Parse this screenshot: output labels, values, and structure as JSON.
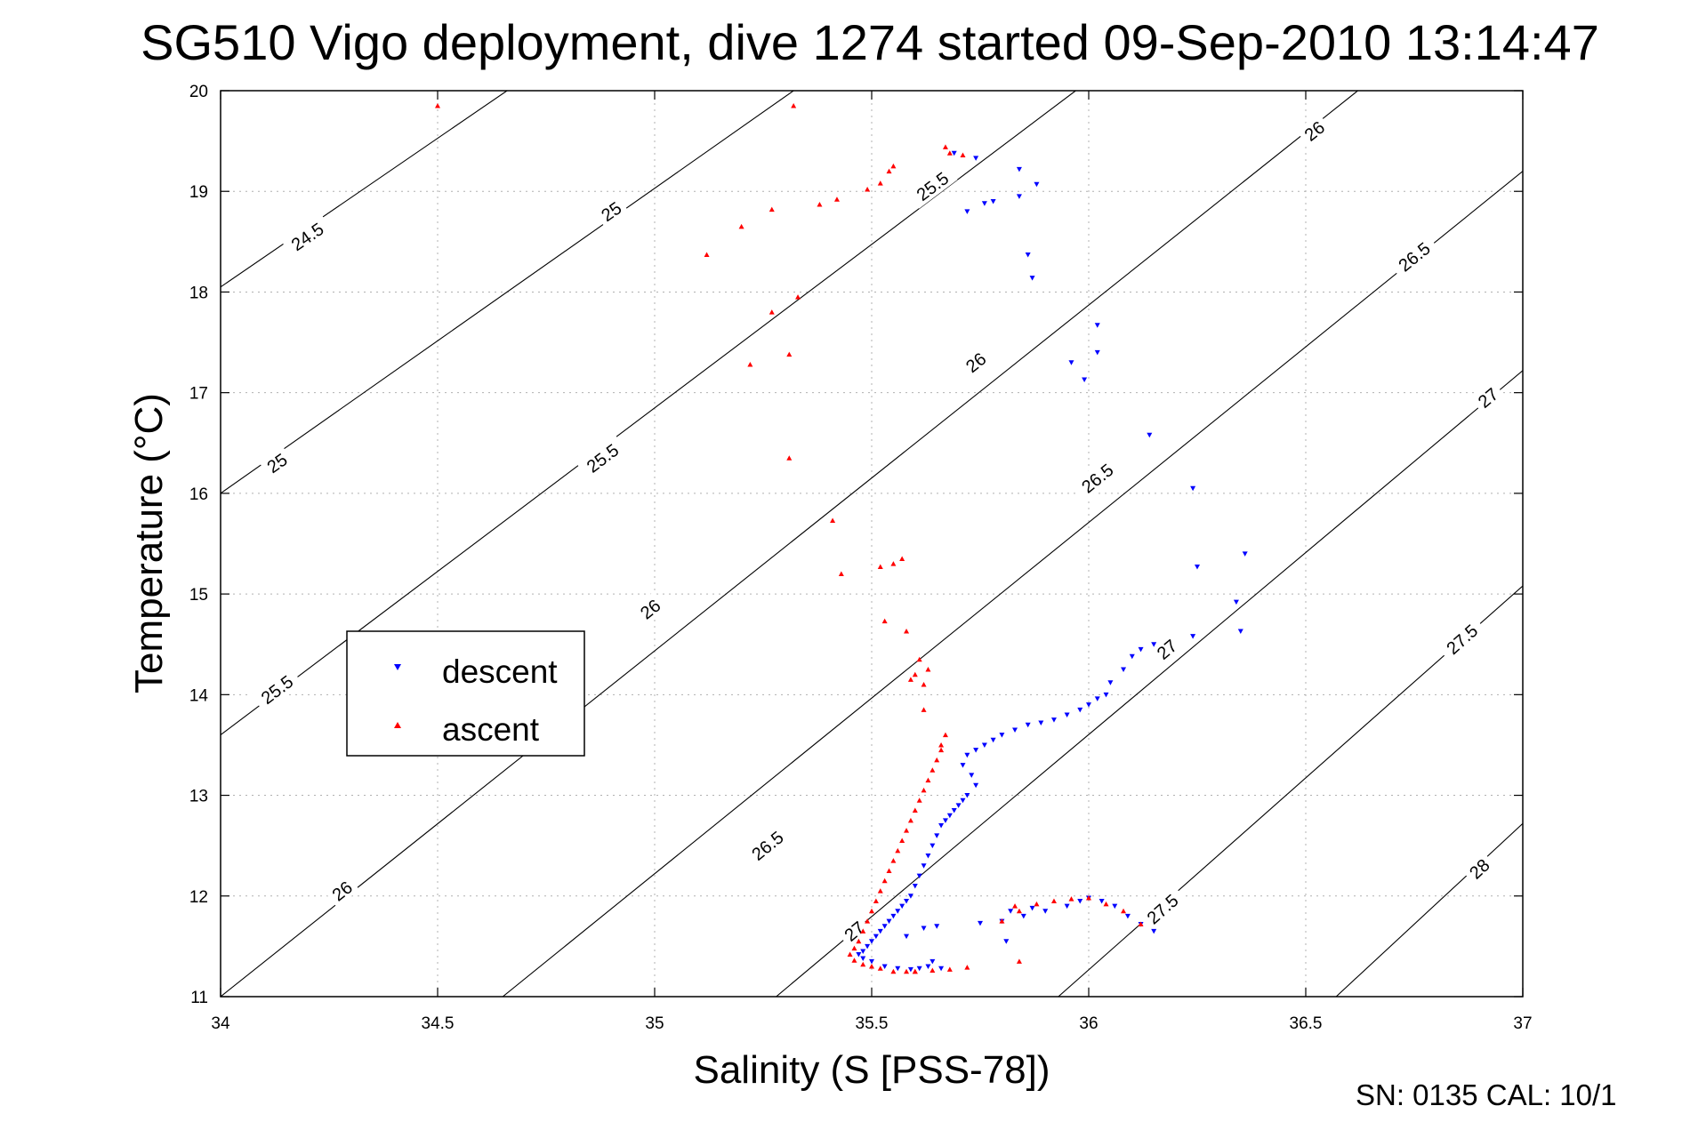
{
  "chart_data": {
    "type": "scatter",
    "title": "SG510 Vigo deployment, dive 1274 started 09-Sep-2010 13:14:47",
    "xlabel": "Salinity (S [PSS-78])",
    "ylabel": "Temperature (°C)",
    "xlim": [
      34,
      37
    ],
    "ylim": [
      11,
      20
    ],
    "xticks": [
      34,
      34.5,
      35,
      35.5,
      36,
      36.5,
      37
    ],
    "xtick_labels": [
      "34",
      "34.5",
      "35",
      "35.5",
      "36",
      "36.5",
      "37"
    ],
    "yticks": [
      11,
      12,
      13,
      14,
      15,
      16,
      17,
      18,
      19,
      20
    ],
    "ytick_labels": [
      "11",
      "12",
      "13",
      "14",
      "15",
      "16",
      "17",
      "18",
      "19",
      "20"
    ],
    "grid": true,
    "legend_position": "left",
    "footer_text": "SN: 0135  CAL: 10/1",
    "colors": {
      "descent": "#0000ff",
      "ascent": "#ff0000",
      "contour": "#000000"
    },
    "contours": [
      {
        "label": "24.5",
        "points": [
          [
            34,
            18.05
          ],
          [
            34.66,
            20
          ]
        ],
        "labels_at": [
          [
            34.2,
            18.55
          ]
        ]
      },
      {
        "label": "25",
        "points": [
          [
            34,
            16.0
          ],
          [
            35.32,
            20
          ]
        ],
        "labels_at": [
          [
            34.13,
            16.3
          ],
          [
            34.9,
            18.8
          ]
        ]
      },
      {
        "label": "25.5",
        "points": [
          [
            34,
            13.6
          ],
          [
            35.97,
            20
          ]
        ],
        "labels_at": [
          [
            34.13,
            14.05
          ],
          [
            34.88,
            16.35
          ],
          [
            35.64,
            19.05
          ]
        ]
      },
      {
        "label": "26",
        "points": [
          [
            34,
            11.0
          ],
          [
            36.62,
            20
          ]
        ],
        "labels_at": [
          [
            34.28,
            12.05
          ],
          [
            34.99,
            14.85
          ],
          [
            35.74,
            17.3
          ],
          [
            36.52,
            19.6
          ]
        ]
      },
      {
        "label": "26.5",
        "points": [
          [
            34.65,
            11.0
          ],
          [
            37,
            19.2
          ]
        ],
        "labels_at": [
          [
            35.26,
            12.5
          ],
          [
            36.02,
            16.15
          ],
          [
            36.75,
            18.35
          ]
        ]
      },
      {
        "label": "27",
        "points": [
          [
            35.28,
            11.0
          ],
          [
            37,
            17.22
          ]
        ],
        "labels_at": [
          [
            35.46,
            11.65
          ],
          [
            36.18,
            14.45
          ],
          [
            36.92,
            16.95
          ]
        ]
      },
      {
        "label": "27.5",
        "points": [
          [
            35.93,
            11.0
          ],
          [
            37,
            15.08
          ]
        ],
        "labels_at": [
          [
            36.17,
            11.87
          ],
          [
            36.86,
            14.55
          ]
        ]
      },
      {
        "label": "28",
        "points": [
          [
            36.57,
            11.0
          ],
          [
            37,
            12.72
          ]
        ],
        "labels_at": [
          [
            36.9,
            12.27
          ]
        ]
      }
    ],
    "series": [
      {
        "name": "descent",
        "marker": "triangle-down",
        "x": [
          35.69,
          35.74,
          35.84,
          35.88,
          35.72,
          35.76,
          35.78,
          35.84,
          35.86,
          35.87,
          35.99,
          36.02,
          35.96,
          36.02,
          36.14,
          36.24,
          36.25,
          36.36,
          36.34,
          36.35,
          36.24,
          36.15,
          36.12,
          36.1,
          36.08,
          36.05,
          36.04,
          36.02,
          36.0,
          35.98,
          35.95,
          35.92,
          35.89,
          35.86,
          35.83,
          35.8,
          35.78,
          35.76,
          35.74,
          35.72,
          35.71,
          35.73,
          35.74,
          35.72,
          35.71,
          35.7,
          35.69,
          35.68,
          35.67,
          35.66,
          35.65,
          35.64,
          35.63,
          35.62,
          35.61,
          35.6,
          35.59,
          35.58,
          35.57,
          35.56,
          35.55,
          35.54,
          35.53,
          35.52,
          35.51,
          35.5,
          35.49,
          35.48,
          35.47,
          35.48,
          35.5,
          35.53,
          35.56,
          35.59,
          35.61,
          35.63,
          35.64,
          35.66,
          35.58,
          35.62,
          35.65,
          35.75,
          35.8,
          35.85,
          35.9,
          35.95,
          35.98,
          36.0,
          36.03,
          36.06,
          36.09,
          36.12,
          36.15,
          35.82,
          35.87,
          35.81
        ],
        "y": [
          19.38,
          19.33,
          19.22,
          19.07,
          18.8,
          18.88,
          18.9,
          18.95,
          18.37,
          18.14,
          17.13,
          17.67,
          17.3,
          17.4,
          16.58,
          16.05,
          15.27,
          15.4,
          14.92,
          14.63,
          14.58,
          14.5,
          14.45,
          14.38,
          14.25,
          14.12,
          14.0,
          13.96,
          13.9,
          13.85,
          13.8,
          13.75,
          13.72,
          13.7,
          13.65,
          13.6,
          13.55,
          13.5,
          13.45,
          13.4,
          13.3,
          13.2,
          13.1,
          13.0,
          12.95,
          12.9,
          12.85,
          12.8,
          12.75,
          12.7,
          12.6,
          12.5,
          12.4,
          12.3,
          12.2,
          12.1,
          12.0,
          11.95,
          11.9,
          11.85,
          11.8,
          11.75,
          11.7,
          11.65,
          11.6,
          11.55,
          11.5,
          11.45,
          11.42,
          11.38,
          11.35,
          11.3,
          11.28,
          11.27,
          11.28,
          11.3,
          11.35,
          11.28,
          11.6,
          11.68,
          11.7,
          11.73,
          11.75,
          11.8,
          11.85,
          11.9,
          11.95,
          11.98,
          11.95,
          11.9,
          11.8,
          11.72,
          11.65,
          11.85,
          11.88,
          11.55
        ]
      },
      {
        "name": "ascent",
        "marker": "triangle-up",
        "x": [
          34.5,
          35.32,
          35.12,
          35.2,
          35.27,
          35.38,
          35.42,
          35.49,
          35.52,
          35.54,
          35.55,
          35.67,
          35.68,
          35.71,
          35.33,
          35.27,
          35.22,
          35.31,
          35.31,
          35.41,
          35.43,
          35.52,
          35.55,
          35.57,
          35.58,
          35.53,
          35.6,
          35.61,
          35.59,
          35.63,
          35.62,
          35.66,
          35.67,
          35.66,
          35.65,
          35.64,
          35.63,
          35.62,
          35.61,
          35.6,
          35.59,
          35.58,
          35.57,
          35.56,
          35.55,
          35.54,
          35.53,
          35.52,
          35.51,
          35.5,
          35.49,
          35.48,
          35.47,
          35.46,
          35.45,
          35.46,
          35.48,
          35.5,
          35.52,
          35.55,
          35.58,
          35.6,
          35.64,
          35.68,
          35.72,
          35.84,
          35.8,
          35.84,
          35.88,
          35.92,
          35.96,
          36.0,
          36.04,
          36.08,
          36.12,
          35.83,
          35.6,
          35.62
        ],
        "y": [
          19.85,
          19.85,
          18.37,
          18.65,
          18.82,
          18.87,
          18.92,
          19.02,
          19.08,
          19.2,
          19.25,
          19.44,
          19.38,
          19.36,
          17.95,
          17.8,
          17.28,
          17.38,
          16.35,
          15.73,
          15.2,
          15.27,
          15.3,
          15.35,
          14.63,
          14.73,
          14.2,
          14.35,
          14.15,
          14.25,
          14.1,
          13.5,
          13.6,
          13.45,
          13.35,
          13.25,
          13.15,
          13.05,
          12.95,
          12.85,
          12.75,
          12.65,
          12.55,
          12.45,
          12.35,
          12.25,
          12.15,
          12.05,
          11.95,
          11.85,
          11.75,
          11.65,
          11.55,
          11.48,
          11.42,
          11.36,
          11.32,
          11.3,
          11.28,
          11.25,
          11.25,
          11.25,
          11.26,
          11.27,
          11.29,
          11.35,
          11.75,
          11.85,
          11.92,
          11.95,
          11.97,
          11.98,
          11.92,
          11.85,
          11.72,
          11.9,
          11.25,
          13.85
        ]
      }
    ]
  }
}
